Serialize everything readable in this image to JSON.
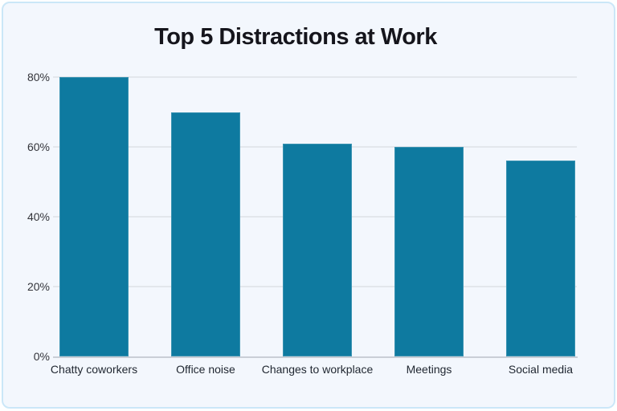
{
  "chart_data": {
    "type": "bar",
    "title": "Top 5 Distractions at Work",
    "categories": [
      "Chatty coworkers",
      "Office noise",
      "Changes to workplace",
      "Meetings",
      "Social media"
    ],
    "values": [
      80,
      70,
      61,
      60,
      56
    ],
    "value_suffix": "%",
    "xlabel": "",
    "ylabel": "",
    "ylim": [
      0,
      80
    ],
    "yticks": [
      0,
      20,
      40,
      60,
      80
    ],
    "ytick_labels": [
      "0%",
      "20%",
      "40%",
      "60%",
      "80%"
    ],
    "grid": "horizontal",
    "legend": "none",
    "colors": {
      "bar": "#0e7aa0",
      "card_background": "#f3f7fd",
      "card_border": "#cbe7f8",
      "gridline": "#e3e7ec",
      "axis_line": "#c9ced6",
      "title_text": "#15151c",
      "tick_text": "#33343a",
      "category_text": "#1f2630"
    }
  }
}
